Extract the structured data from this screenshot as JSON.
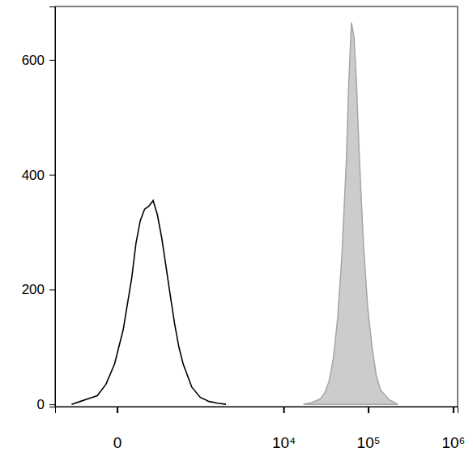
{
  "chart_data": {
    "type": "line",
    "log": "x",
    "xlim": [
      -485,
      1130000
    ],
    "xticks": [
      0,
      {
        "value": 10000,
        "label": "10⁴"
      },
      {
        "value": 100000,
        "label": "10⁵"
      },
      {
        "value": 1000000,
        "label": "10⁶"
      }
    ],
    "ylim": [
      -4,
      693
    ],
    "yticks": [
      0,
      200,
      400,
      600
    ],
    "series": [
      {
        "type": "line",
        "color": "#000000",
        "x": [
          -270,
          -191,
          -128,
          -79,
          -39,
          -8,
          20,
          54,
          74,
          97,
          123,
          151,
          184,
          220,
          261,
          307,
          358,
          417,
          481,
          555,
          729,
          949,
          1227,
          1576,
          2019
        ],
        "values": [
          0,
          5,
          10,
          15,
          35,
          70,
          130,
          220,
          280,
          320,
          340,
          345,
          355,
          330,
          290,
          240,
          190,
          140,
          100,
          70,
          30,
          12,
          5,
          2,
          0
        ]
      },
      {
        "type": "area",
        "color": "#cccccc",
        "x": [
          17160,
          21680,
          27380,
          30750,
          34590,
          38830,
          43680,
          49020,
          55140,
          59090,
          63470,
          68020,
          72890,
          78110,
          87860,
          98590,
          110890,
          124720,
          139950,
          176600,
          222890
        ],
        "values": [
          0,
          3,
          10,
          20,
          40,
          80,
          150,
          260,
          420,
          560,
          665,
          640,
          560,
          440,
          280,
          170,
          100,
          50,
          25,
          8,
          0
        ]
      }
    ]
  }
}
